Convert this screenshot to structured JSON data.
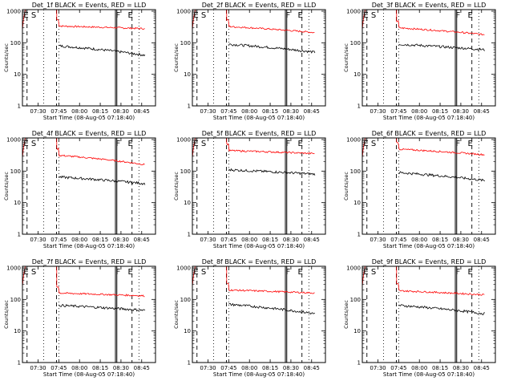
{
  "figure": {
    "xaxis_title": "Start Time (08-Aug-05 07:18:40)",
    "yaxis_title": "Counts/sec",
    "x_tick_labels": [
      "07:30",
      "07:45",
      "08:00",
      "08:15",
      "08:30",
      "08:45"
    ],
    "y_tick_labels": [
      "1000",
      "100",
      "10",
      "1"
    ],
    "colors": {
      "events": "#000000",
      "lld": "#ff0000",
      "axes": "#000000",
      "background": "#ffffff"
    }
  },
  "chart_data": [
    {
      "type": "line",
      "title": "Det_1f BLACK = Events, RED = LLD",
      "markers": [
        "E",
        "S",
        "F",
        "E"
      ],
      "lld_level": 340,
      "lld_end": 280,
      "events_level": 80,
      "events_end": 40,
      "peak_time": 27
    },
    {
      "type": "line",
      "title": "Det_2f BLACK = Events, RED = LLD",
      "markers": [
        "E",
        "S",
        "F",
        "E"
      ],
      "lld_level": 330,
      "lld_end": 210,
      "events_level": 90,
      "events_end": 50,
      "peak_time": 26
    },
    {
      "type": "line",
      "title": "Det_3f BLACK = Events, RED = LLD",
      "markers": [
        "E",
        "S",
        "F",
        "E"
      ],
      "lld_level": 300,
      "lld_end": 180,
      "events_level": 90,
      "events_end": 60,
      "peak_time": 26
    },
    {
      "type": "line",
      "title": "Det_4f BLACK = Events, RED = LLD",
      "markers": [
        "E",
        "S",
        "F",
        "E"
      ],
      "lld_level": 320,
      "lld_end": 160,
      "events_level": 65,
      "events_end": 40,
      "peak_time": 27
    },
    {
      "type": "line",
      "title": "Det_5f BLACK = Events, RED = LLD",
      "markers": [
        "E",
        "S",
        "F",
        "E"
      ],
      "lld_level": 450,
      "lld_end": 360,
      "events_level": 110,
      "events_end": 80,
      "peak_time": 25
    },
    {
      "type": "line",
      "title": "Det_6f BLACK = Events, RED = LLD",
      "markers": [
        "E",
        "S",
        "F",
        "E"
      ],
      "lld_level": 500,
      "lld_end": 330,
      "events_level": 90,
      "events_end": 50,
      "peak_time": 27
    },
    {
      "type": "line",
      "title": "Det_7f BLACK = Events, RED = LLD",
      "markers": [
        "E",
        "S",
        "F",
        "E"
      ],
      "lld_level": 160,
      "lld_end": 130,
      "events_level": 65,
      "events_end": 45,
      "peak_time": 26
    },
    {
      "type": "line",
      "title": "Det_8f BLACK = Events, RED = LLD",
      "markers": [
        "E",
        "S",
        "F",
        "E"
      ],
      "lld_level": 200,
      "lld_end": 160,
      "events_level": 70,
      "events_end": 35,
      "peak_time": 26
    },
    {
      "type": "line",
      "title": "Det_9f BLACK = Events, RED = LLD",
      "markers": [
        "E",
        "S",
        "F",
        "E"
      ],
      "lld_level": 190,
      "lld_end": 140,
      "events_level": 65,
      "events_end": 35,
      "peak_time": 26
    }
  ]
}
